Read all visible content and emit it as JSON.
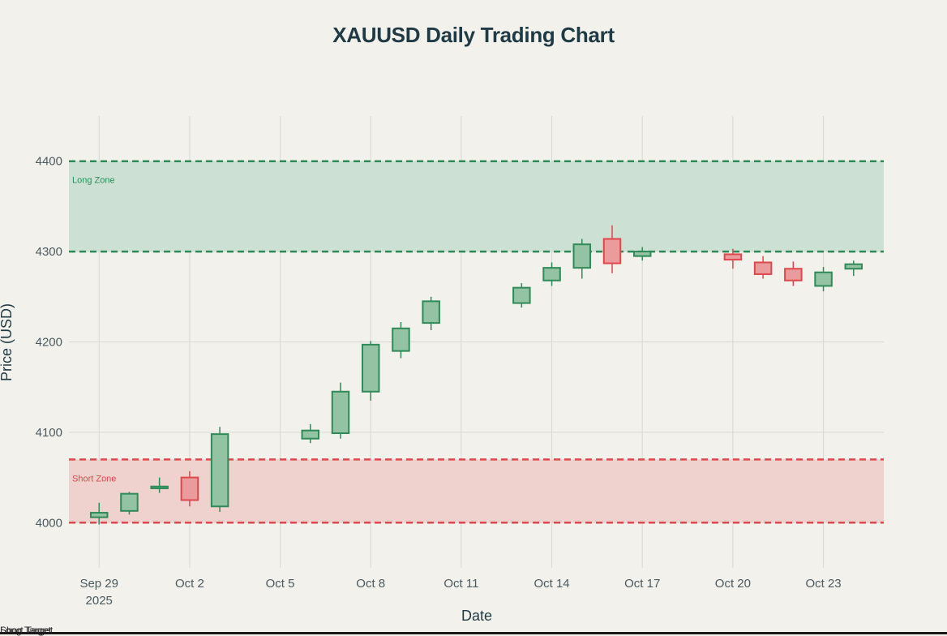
{
  "chart_data": {
    "type": "candlestick",
    "title": "XAUUSD Daily Trading Chart",
    "xlabel": "Date",
    "ylabel": "Price (USD)",
    "ylim": [
      3950,
      4450
    ],
    "yticks": [
      4000,
      4100,
      4200,
      4300,
      4400
    ],
    "xlim": [
      "2025-09-28",
      "2025-10-25"
    ],
    "xticks": [
      {
        "date": "2025-09-29",
        "label": "Sep 29",
        "sublabel": "2025"
      },
      {
        "date": "2025-10-02",
        "label": "Oct 2"
      },
      {
        "date": "2025-10-05",
        "label": "Oct 5"
      },
      {
        "date": "2025-10-08",
        "label": "Oct 8"
      },
      {
        "date": "2025-10-11",
        "label": "Oct 11"
      },
      {
        "date": "2025-10-14",
        "label": "Oct 14"
      },
      {
        "date": "2025-10-17",
        "label": "Oct 17"
      },
      {
        "date": "2025-10-20",
        "label": "Oct 20"
      },
      {
        "date": "2025-10-23",
        "label": "Oct 23"
      }
    ],
    "grid": true,
    "candles": [
      {
        "date": "2025-09-29",
        "open": 4006,
        "high": 4022,
        "low": 3998,
        "close": 4011
      },
      {
        "date": "2025-09-30",
        "open": 4013,
        "high": 4034,
        "low": 4009,
        "close": 4032
      },
      {
        "date": "2025-10-01",
        "open": 4038,
        "high": 4050,
        "low": 4033,
        "close": 4040
      },
      {
        "date": "2025-10-02",
        "open": 4050,
        "high": 4057,
        "low": 4018,
        "close": 4025
      },
      {
        "date": "2025-10-03",
        "open": 4018,
        "high": 4106,
        "low": 4012,
        "close": 4098
      },
      {
        "date": "2025-10-06",
        "open": 4093,
        "high": 4109,
        "low": 4088,
        "close": 4102
      },
      {
        "date": "2025-10-07",
        "open": 4099,
        "high": 4155,
        "low": 4093,
        "close": 4145
      },
      {
        "date": "2025-10-08",
        "open": 4145,
        "high": 4201,
        "low": 4135,
        "close": 4197
      },
      {
        "date": "2025-10-09",
        "open": 4190,
        "high": 4222,
        "low": 4182,
        "close": 4215
      },
      {
        "date": "2025-10-10",
        "open": 4221,
        "high": 4250,
        "low": 4213,
        "close": 4245
      },
      {
        "date": "2025-10-13",
        "open": 4243,
        "high": 4265,
        "low": 4238,
        "close": 4260
      },
      {
        "date": "2025-10-14",
        "open": 4268,
        "high": 4288,
        "low": 4262,
        "close": 4282
      },
      {
        "date": "2025-10-15",
        "open": 4282,
        "high": 4314,
        "low": 4270,
        "close": 4308
      },
      {
        "date": "2025-10-16",
        "open": 4314,
        "high": 4329,
        "low": 4276,
        "close": 4287
      },
      {
        "date": "2025-10-17",
        "open": 4295,
        "high": 4305,
        "low": 4290,
        "close": 4300
      },
      {
        "date": "2025-10-20",
        "open": 4297,
        "high": 4303,
        "low": 4281,
        "close": 4291
      },
      {
        "date": "2025-10-21",
        "open": 4288,
        "high": 4295,
        "low": 4270,
        "close": 4275
      },
      {
        "date": "2025-10-22",
        "open": 4281,
        "high": 4289,
        "low": 4262,
        "close": 4268
      },
      {
        "date": "2025-10-23",
        "open": 4262,
        "high": 4283,
        "low": 4256,
        "close": 4277
      },
      {
        "date": "2025-10-24",
        "open": 4281,
        "high": 4290,
        "low": 4273,
        "close": 4286
      }
    ],
    "zones": [
      {
        "name": "Long Zone",
        "from": 4300,
        "to": 4400,
        "fill": "#cde0d4",
        "line": "#2e8b57"
      },
      {
        "name": "Short Zone",
        "from": 4000,
        "to": 4070,
        "fill": "#efd1ce",
        "line": "#e0474c"
      }
    ],
    "colors": {
      "up_body": "#93c3a3",
      "up_line": "#2e8b57",
      "down_body": "#e99c9b",
      "down_line": "#e0474c",
      "grid": "#d8d8d2",
      "background": "#f2f1ec"
    }
  },
  "overlap_labels": [
    "Short Target",
    "Long Target"
  ]
}
